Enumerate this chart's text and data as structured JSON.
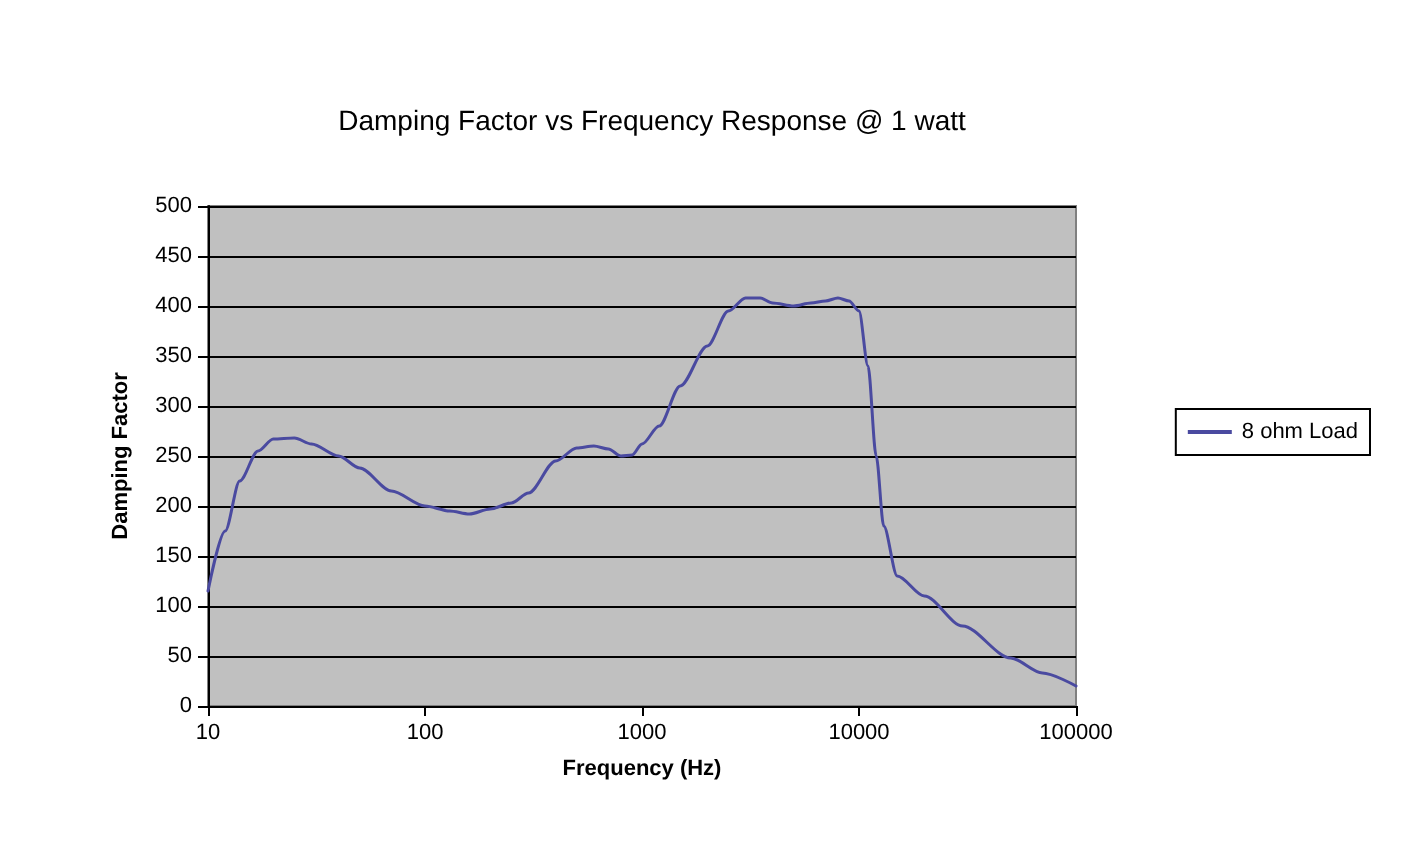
{
  "chart_data": {
    "type": "line",
    "title": "Damping Factor vs Frequency Response @ 1 watt",
    "xlabel": "Frequency (Hz)",
    "ylabel": "Damping Factor",
    "log": "x",
    "xlim": [
      10,
      100000
    ],
    "xticks": [
      10,
      100,
      1000,
      10000,
      100000
    ],
    "ylim": [
      0,
      500
    ],
    "yticks": [
      0,
      50,
      100,
      150,
      200,
      250,
      300,
      350,
      400,
      450,
      500
    ],
    "grid": "y",
    "legend": "right",
    "marker": "none",
    "line_style": "solid",
    "x": [
      10,
      12,
      14,
      17,
      20,
      25,
      30,
      40,
      50,
      70,
      100,
      130,
      160,
      200,
      250,
      300,
      400,
      500,
      600,
      700,
      800,
      900,
      1000,
      1200,
      1500,
      2000,
      2500,
      3000,
      3500,
      4000,
      5000,
      6000,
      7000,
      8000,
      9000,
      10000,
      11000,
      12000,
      13000,
      15000,
      20000,
      30000,
      50000,
      70000,
      100000
    ],
    "series": [
      {
        "name": "8 ohm Load",
        "color": "#4a4aa0",
        "values": [
          115,
          175,
          225,
          255,
          267,
          268,
          262,
          250,
          238,
          215,
          200,
          195,
          192,
          197,
          203,
          213,
          245,
          258,
          260,
          257,
          250,
          251,
          262,
          280,
          320,
          360,
          395,
          408,
          408,
          403,
          400,
          403,
          405,
          408,
          405,
          395,
          340,
          250,
          180,
          130,
          110,
          80,
          48,
          33,
          20
        ]
      }
    ]
  }
}
